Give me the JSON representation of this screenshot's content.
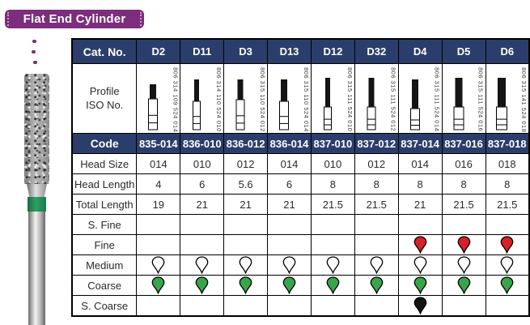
{
  "banner": {
    "title": "Flat End Cylinder"
  },
  "colors": {
    "navy": "#2b3e6b",
    "purple": "#7c2d7b",
    "band_green": "#2f9e62",
    "drop_red": "#d6202a",
    "drop_green": "#3aa44d",
    "drop_black": "#141414",
    "drop_white": "#ffffff"
  },
  "table": {
    "cat_no_label": "Cat. No.",
    "columns": [
      "D2",
      "D11",
      "D3",
      "D13",
      "D12",
      "D32",
      "D4",
      "D5",
      "D6"
    ],
    "profile": {
      "label_lines": [
        "Profile",
        "ISO No."
      ],
      "iso_numbers": [
        "806 314 109 524 014",
        "806 314 110 524 010",
        "806 315 110 524 012",
        "806 315 110 524 014",
        "806 315 111 524 010",
        "806 315 111 524 012",
        "806 315 111 524 014",
        "806 315 111 524 016",
        "806 315 141 524 018"
      ]
    },
    "rows": [
      {
        "label": "Code",
        "type": "navy",
        "values": [
          "835-014",
          "836-010",
          "836-012",
          "836-014",
          "837-010",
          "837-012",
          "837-014",
          "837-016",
          "837-018"
        ]
      },
      {
        "label": "Head Size",
        "type": "plain",
        "values": [
          "014",
          "010",
          "012",
          "014",
          "010",
          "012",
          "014",
          "016",
          "018"
        ]
      },
      {
        "label": "Head Length",
        "type": "plain",
        "values": [
          "4",
          "6",
          "5.6",
          "6",
          "8",
          "8",
          "8",
          "8",
          "8"
        ]
      },
      {
        "label": "Total Length",
        "type": "plain",
        "values": [
          "19",
          "21",
          "21",
          "21",
          "21.5",
          "21.5",
          "21",
          "21.5",
          "21.5"
        ]
      },
      {
        "label": "S. Fine",
        "type": "grit",
        "values": [
          "",
          "",
          "",
          "",
          "",
          "",
          "",
          "",
          ""
        ]
      },
      {
        "label": "Fine",
        "type": "grit",
        "values": [
          "",
          "",
          "",
          "",
          "",
          "",
          "red",
          "red",
          "red"
        ]
      },
      {
        "label": "Medium",
        "type": "grit",
        "values": [
          "white",
          "white",
          "white",
          "white",
          "white",
          "white",
          "white",
          "white",
          "white"
        ]
      },
      {
        "label": "Coarse",
        "type": "grit",
        "values": [
          "green",
          "green",
          "green",
          "green",
          "green",
          "green",
          "green",
          "green",
          "green"
        ]
      },
      {
        "label": "S. Coarse",
        "type": "grit",
        "values": [
          "",
          "",
          "",
          "",
          "",
          "",
          "black",
          "",
          ""
        ]
      }
    ]
  }
}
